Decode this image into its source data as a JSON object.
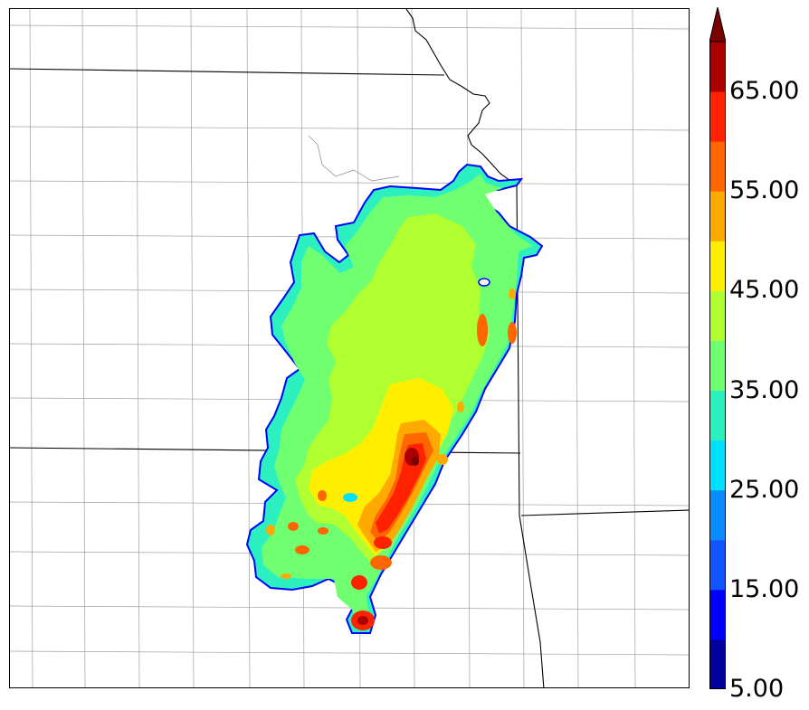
{
  "colors": {
    "background": "#ffffff",
    "state_border": "#000000",
    "county_border": "#9a9a9a"
  },
  "colorbar": {
    "min": 5,
    "max": 70,
    "step": 5,
    "extend": "max",
    "segments": [
      "#00009a",
      "#0000ff",
      "#1155ff",
      "#0a8cff",
      "#00e0ff",
      "#2cf0c0",
      "#70ff70",
      "#b0ff30",
      "#ffee00",
      "#ffaa00",
      "#ff6600",
      "#ff2200",
      "#aa0000"
    ],
    "extend_color": "#7a0000",
    "tick_labels": [
      {
        "value": 5,
        "label": "5.00"
      },
      {
        "value": 15,
        "label": "15.00"
      },
      {
        "value": 25,
        "label": "25.00"
      },
      {
        "value": 35,
        "label": "35.00"
      },
      {
        "value": 45,
        "label": "45.00"
      },
      {
        "value": 55,
        "label": "55.00"
      },
      {
        "value": 65,
        "label": "65.00"
      }
    ]
  }
}
